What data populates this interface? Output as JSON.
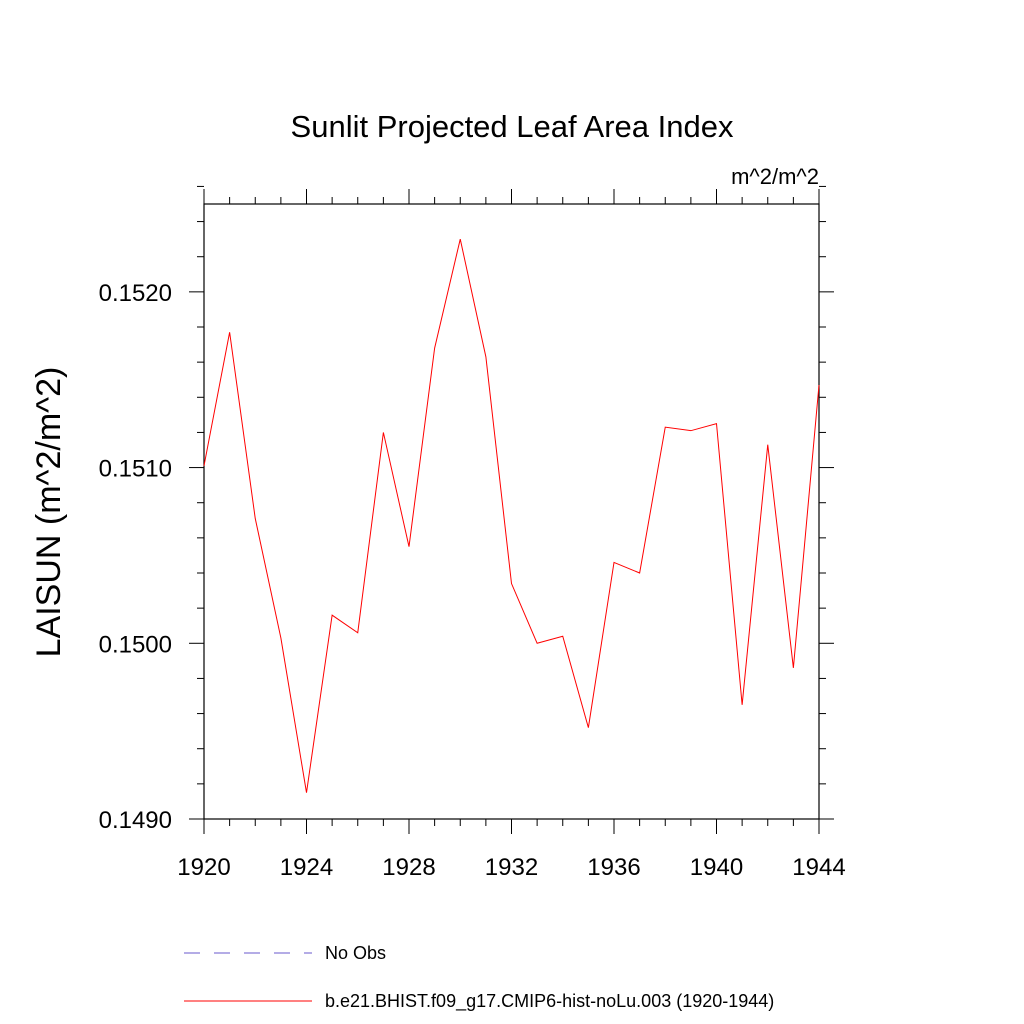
{
  "chart_data": {
    "type": "line",
    "title": "Sunlit Projected Leaf Area Index",
    "units_label": "m^2/m^2",
    "ylabel": "LAISUN  (m^2/m^2)",
    "xlabel": "",
    "xlim": [
      1920,
      1944
    ],
    "ylim": [
      0.149,
      0.1525
    ],
    "x_ticks": [
      "1920",
      "1924",
      "1928",
      "1932",
      "1936",
      "1940",
      "1944"
    ],
    "y_ticks": [
      "0.1490",
      "0.1500",
      "0.1510",
      "0.1520"
    ],
    "grid": false,
    "legend_position": "bottom",
    "series": [
      {
        "name": "No Obs",
        "color": "#6a5acd",
        "style": "dashed",
        "x": [],
        "y": []
      },
      {
        "name": "b.e21.BHIST.f09_g17.CMIP6-hist-noLu.003 (1920-1944)",
        "color": "#ff0000",
        "style": "solid",
        "x": [
          1920,
          1921,
          1922,
          1923,
          1924,
          1925,
          1926,
          1927,
          1928,
          1929,
          1930,
          1931,
          1932,
          1933,
          1934,
          1935,
          1936,
          1937,
          1938,
          1939,
          1940,
          1941,
          1942,
          1943,
          1944
        ],
        "y": [
          0.15101,
          0.15177,
          0.15071,
          0.15003,
          0.14915,
          0.15016,
          0.15006,
          0.1512,
          0.15055,
          0.15168,
          0.1523,
          0.15163,
          0.15034,
          0.15,
          0.15004,
          0.14952,
          0.15046,
          0.1504,
          0.15123,
          0.15121,
          0.15125,
          0.14965,
          0.15113,
          0.14986,
          0.15147
        ]
      }
    ]
  }
}
